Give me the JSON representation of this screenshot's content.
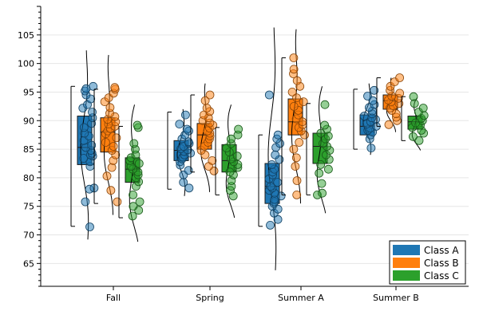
{
  "chart_data": {
    "type": "box",
    "categories": [
      "Fall",
      "Spring",
      "Summer A",
      "Summer B"
    ],
    "ylim": [
      61,
      110
    ],
    "yticks": [
      65,
      70,
      75,
      80,
      85,
      90,
      95,
      100,
      105
    ],
    "ytick_labels": [
      "65",
      "70",
      "75",
      "80",
      "85",
      "90",
      "95",
      "100",
      "105"
    ],
    "grid": "horizontal",
    "legend_position": "bottom-right",
    "series": [
      {
        "name": "Class A",
        "color": "#1f77b4",
        "boxes": [
          {
            "whisker_low": 71.5,
            "q1": 82.3,
            "median": 85.3,
            "q3": 90.8,
            "whisker_high": 96.0
          },
          {
            "whisker_low": 78.0,
            "q1": 83.0,
            "median": 84.8,
            "q3": 86.5,
            "whisker_high": 91.5
          },
          {
            "whisker_low": 71.5,
            "q1": 75.5,
            "median": 78.5,
            "q3": 82.5,
            "whisker_high": 87.5
          },
          {
            "whisker_low": 85.0,
            "q1": 87.5,
            "median": 89.0,
            "q3": 91.0,
            "whisker_high": 95.5
          }
        ],
        "points": [
          [
            71.4,
            75.8,
            78.0,
            78.2,
            82.0,
            82.8,
            83.4,
            83.8,
            84.0,
            84.3,
            84.8,
            85.3,
            85.7,
            86.5,
            87.3,
            87.8,
            88.8,
            89.5,
            90.5,
            91.5,
            92.2,
            92.8,
            93.8,
            94.5,
            95.2,
            95.6,
            96.0
          ],
          [
            78.2,
            79.2,
            80.5,
            81.3,
            82.2,
            82.8,
            83.3,
            83.6,
            84.0,
            84.3,
            84.6,
            84.9,
            85.1,
            85.5,
            86.0,
            86.3,
            86.8,
            87.5,
            88.2,
            88.5,
            89.4,
            91.0
          ],
          [
            71.7,
            72.7,
            73.8,
            74.5,
            75.0,
            75.5,
            75.8,
            76.2,
            76.8,
            77.3,
            77.8,
            78.2,
            78.5,
            79.2,
            79.8,
            80.5,
            81.0,
            81.5,
            82.3,
            83.2,
            84.0,
            85.3,
            86.0,
            86.8,
            87.5,
            94.5
          ],
          [
            85.2,
            86.8,
            87.5,
            88.0,
            88.3,
            88.7,
            89.0,
            89.4,
            89.8,
            90.2,
            90.5,
            90.8,
            91.2,
            91.7,
            92.3,
            92.8,
            93.5,
            94.3,
            95.3
          ]
        ],
        "density_range": [
          [
            69.2,
            102.3
          ],
          [
            76.8,
            92.0
          ],
          [
            63.8,
            106.3
          ],
          [
            84.0,
            96.5
          ]
        ]
      },
      {
        "name": "Class B",
        "color": "#ff7f0e",
        "boxes": [
          {
            "whisker_low": 75.5,
            "q1": 84.5,
            "median": 88.0,
            "q3": 90.5,
            "whisker_high": 95.5
          },
          {
            "whisker_low": 81.0,
            "q1": 85.0,
            "median": 87.5,
            "q3": 89.5,
            "whisker_high": 94.5
          },
          {
            "whisker_low": 77.0,
            "q1": 87.5,
            "median": 89.8,
            "q3": 93.8,
            "whisker_high": 101.0
          },
          {
            "whisker_low": 89.0,
            "q1": 92.0,
            "median": 93.5,
            "q3": 94.5,
            "whisker_high": 97.5
          }
        ],
        "points": [
          [
            75.8,
            77.8,
            80.3,
            81.8,
            83.0,
            84.0,
            84.8,
            85.5,
            86.2,
            87.0,
            87.7,
            88.2,
            88.6,
            89.0,
            89.4,
            89.8,
            90.2,
            90.7,
            91.3,
            92.3,
            93.3,
            94.0,
            94.8,
            95.5,
            95.8
          ],
          [
            81.2,
            82.0,
            83.0,
            84.0,
            84.8,
            85.5,
            86.2,
            86.8,
            87.3,
            87.8,
            88.2,
            88.7,
            89.2,
            89.6,
            90.0,
            90.5,
            91.0,
            91.6,
            92.2,
            93.5,
            94.5
          ],
          [
            77.0,
            79.5,
            82.0,
            83.5,
            85.0,
            86.2,
            87.5,
            88.2,
            88.8,
            89.3,
            89.8,
            90.3,
            91.0,
            91.8,
            92.5,
            93.3,
            94.0,
            95.0,
            96.0,
            97.0,
            98.2,
            99.0,
            101.0
          ],
          [
            89.3,
            90.0,
            90.6,
            91.2,
            91.8,
            92.2,
            92.6,
            93.0,
            93.3,
            93.6,
            93.9,
            94.3,
            94.8,
            95.3,
            96.0,
            96.8,
            97.5
          ]
        ],
        "density_range": [
          [
            73.5,
            101.5
          ],
          [
            77.5,
            96.5
          ],
          [
            75.5,
            106.0
          ],
          [
            88.0,
            97.5
          ]
        ]
      },
      {
        "name": "Class C",
        "color": "#2ca02c",
        "boxes": [
          {
            "whisker_low": 73.0,
            "q1": 79.2,
            "median": 81.5,
            "q3": 83.5,
            "whisker_high": 89.0
          },
          {
            "whisker_low": 77.0,
            "q1": 81.0,
            "median": 83.0,
            "q3": 85.8,
            "whisker_high": 88.8
          },
          {
            "whisker_low": 77.0,
            "q1": 82.5,
            "median": 85.5,
            "q3": 87.8,
            "whisker_high": 93.0
          },
          {
            "whisker_low": 86.5,
            "q1": 88.5,
            "median": 89.8,
            "q3": 90.8,
            "whisker_high": 94.2
          }
        ],
        "points": [
          [
            73.3,
            74.3,
            75.0,
            75.8,
            77.0,
            78.5,
            79.3,
            80.0,
            80.5,
            81.0,
            81.5,
            82.0,
            82.5,
            83.0,
            83.5,
            84.0,
            85.0,
            86.0,
            88.8,
            89.2
          ],
          [
            76.8,
            77.8,
            78.5,
            79.5,
            80.5,
            81.0,
            81.8,
            82.3,
            82.8,
            83.3,
            83.8,
            84.5,
            85.2,
            86.0,
            86.8,
            87.5,
            88.5
          ],
          [
            77.0,
            77.3,
            79.0,
            80.8,
            81.5,
            82.3,
            83.2,
            84.0,
            84.8,
            85.5,
            86.0,
            86.8,
            87.3,
            87.8,
            88.5,
            89.2,
            92.8
          ],
          [
            86.5,
            87.2,
            87.8,
            88.3,
            88.8,
            89.2,
            89.6,
            90.0,
            90.4,
            90.9,
            91.5,
            92.2,
            93.0,
            94.2
          ]
        ],
        "density_range": [
          [
            68.8,
            92.8
          ],
          [
            73.0,
            92.8
          ],
          [
            73.8,
            96.0
          ],
          [
            84.8,
            94.0
          ]
        ]
      }
    ]
  }
}
